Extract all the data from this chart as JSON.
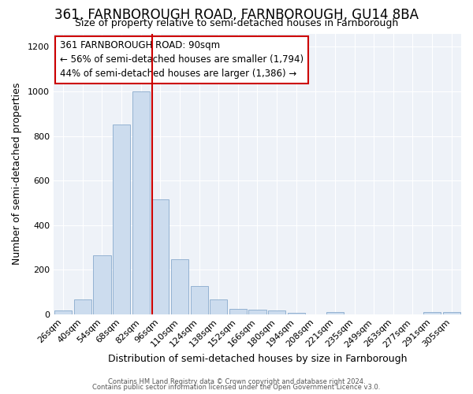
{
  "title": "361, FARNBOROUGH ROAD, FARNBOROUGH, GU14 8BA",
  "subtitle": "Size of property relative to semi-detached houses in Farnborough",
  "xlabel": "Distribution of semi-detached houses by size in Farnborough",
  "ylabel": "Number of semi-detached properties",
  "bar_labels": [
    "26sqm",
    "40sqm",
    "54sqm",
    "68sqm",
    "82sqm",
    "96sqm",
    "110sqm",
    "124sqm",
    "138sqm",
    "152sqm",
    "166sqm",
    "180sqm",
    "194sqm",
    "208sqm",
    "221sqm",
    "235sqm",
    "249sqm",
    "263sqm",
    "277sqm",
    "291sqm",
    "305sqm"
  ],
  "bar_values": [
    18,
    65,
    265,
    850,
    1000,
    515,
    245,
    125,
    65,
    25,
    20,
    15,
    5,
    0,
    8,
    0,
    0,
    0,
    0,
    8,
    8
  ],
  "bar_color": "#ccdcee",
  "bar_edge_color": "#88aacc",
  "vline_color": "#cc0000",
  "vline_pos": 4.57,
  "annotation_title": "361 FARNBOROUGH ROAD: 90sqm",
  "annotation_line1": "← 56% of semi-detached houses are smaller (1,794)",
  "annotation_line2": "44% of semi-detached houses are larger (1,386) →",
  "annotation_box_facecolor": "#ffffff",
  "annotation_border_color": "#cc0000",
  "ylim": [
    0,
    1260
  ],
  "yticks": [
    0,
    200,
    400,
    600,
    800,
    1000,
    1200
  ],
  "footnote1": "Contains HM Land Registry data © Crown copyright and database right 2024.",
  "footnote2": "Contains public sector information licensed under the Open Government Licence v3.0.",
  "background_color": "#ffffff",
  "plot_bg_color": "#eef2f8",
  "grid_color": "#ffffff",
  "title_fontsize": 12,
  "subtitle_fontsize": 9,
  "tick_fontsize": 8,
  "axis_label_fontsize": 9,
  "annotation_fontsize": 8.5,
  "footnote_fontsize": 6
}
